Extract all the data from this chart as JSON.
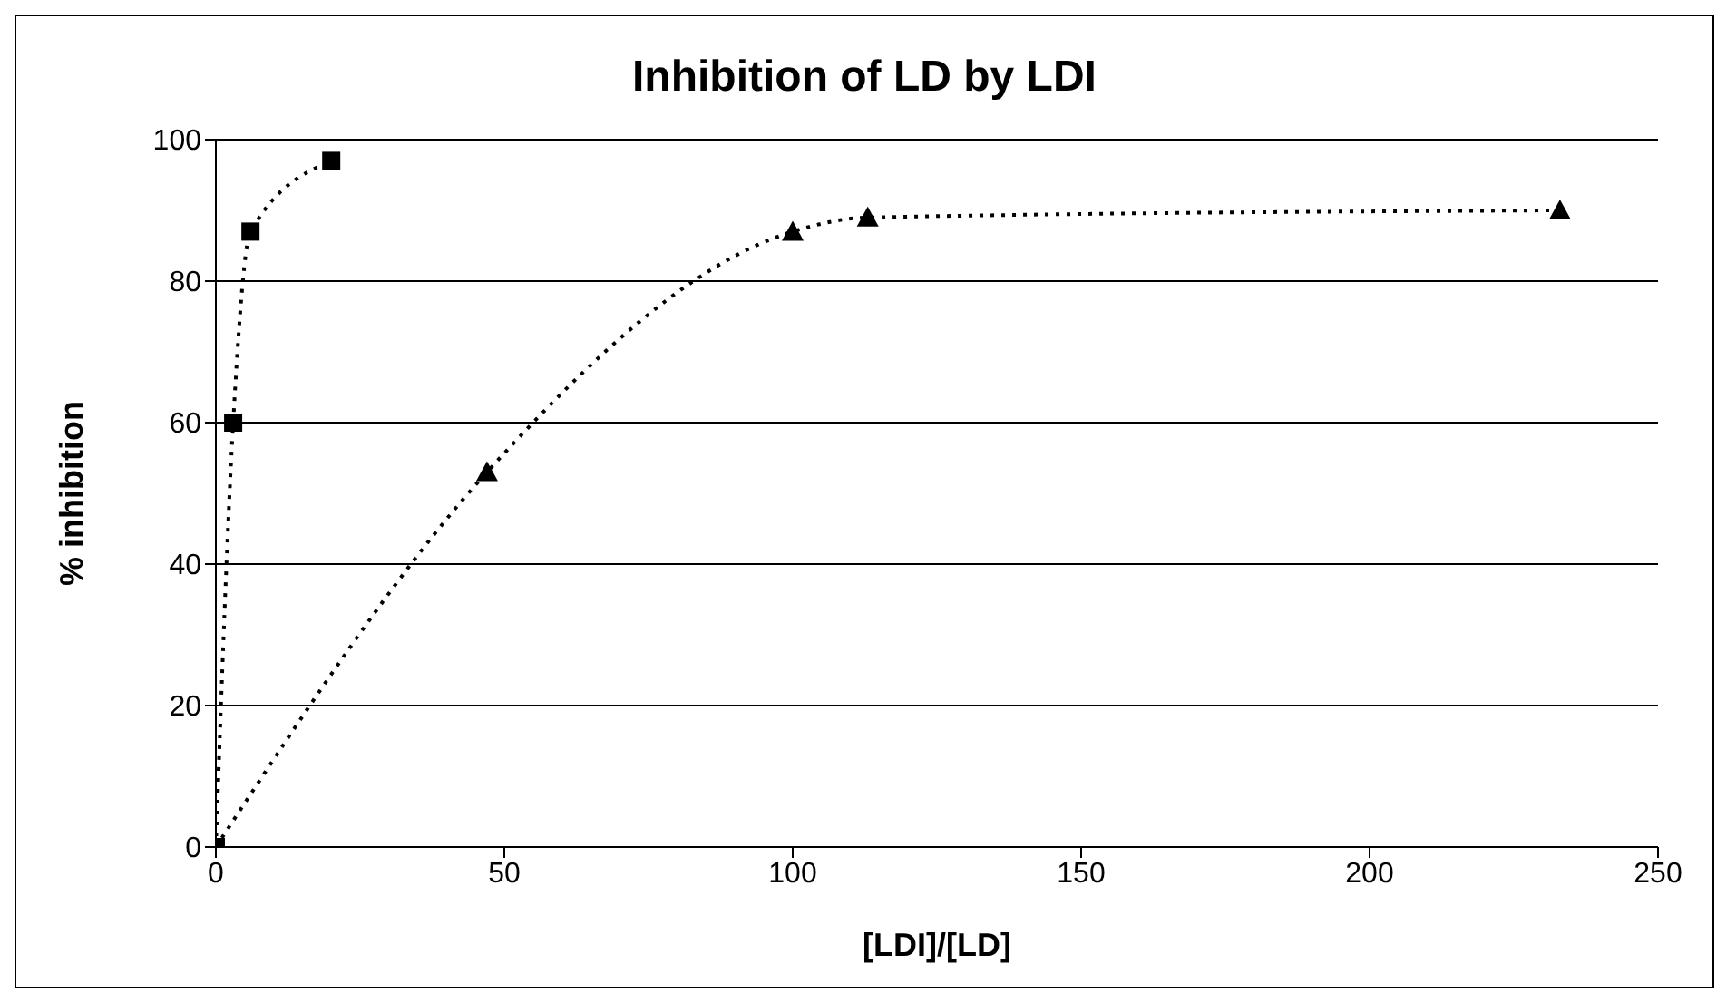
{
  "chart_data": {
    "type": "line",
    "title": "Inhibition of LD by LDI",
    "xlabel": "[LDI]/[LD]",
    "ylabel": "% inhibition",
    "series": [
      {
        "color": "#000000",
        "marker": "square",
        "x": [
          0,
          3,
          6,
          20
        ],
        "values": [
          0,
          60,
          87,
          97
        ]
      },
      {
        "color": "#000000",
        "marker": "triangle",
        "x": [
          0,
          47,
          100,
          113,
          233
        ],
        "values": [
          0,
          53,
          87,
          89,
          90
        ]
      }
    ],
    "line_style": "dotted",
    "xlim": [
      0,
      250
    ],
    "xticks": [
      0,
      50,
      100,
      150,
      200,
      250
    ],
    "ylim": [
      0,
      100
    ],
    "yticks": [
      0,
      20,
      40,
      60,
      80,
      100
    ],
    "grid": "y",
    "legend": false
  }
}
